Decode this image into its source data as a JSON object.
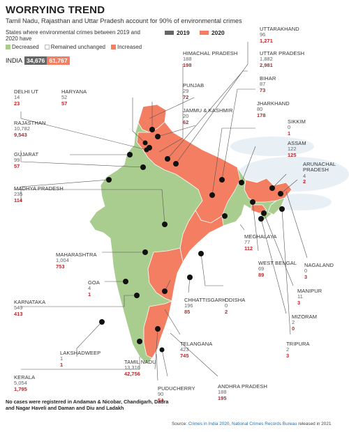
{
  "title": "WORRYING TREND",
  "subtitle": "Tamil Nadu, Rajasthan and Uttar Pradesh  account for 90% of environmental crimes",
  "legend": {
    "heading": "States where environmental crimes between 2019 and 2020 have",
    "year_2019": "2019",
    "year_2020": "2020",
    "decreased": "Decreased",
    "unchanged": "Remained unchanged",
    "increased": "Increased"
  },
  "colors": {
    "decreased": "#a9cc8f",
    "increased": "#f37e62",
    "y2019": "#666666",
    "y2020": "#f37e62",
    "value2020": "#c0272d"
  },
  "india": {
    "name": "INDIA",
    "v2019": "34,676",
    "v2020": "61,767"
  },
  "states": {
    "uttarakhand": {
      "name": "UTTARAKHAND",
      "v2019": "96",
      "v2020": "1,271"
    },
    "uttar_pradesh": {
      "name": "UTTAR PRADESH",
      "v2019": "1,882",
      "v2020": "2,981"
    },
    "himachal_pradesh": {
      "name": "HIMACHAL PRADESH",
      "v2019": "188",
      "v2020": "198"
    },
    "bihar": {
      "name": "BIHAR",
      "v2019": "87",
      "v2020": "73"
    },
    "punjab": {
      "name": "PUNJAB",
      "v2019": "29",
      "v2020": "72"
    },
    "jharkhand": {
      "name": "JHARKHAND",
      "v2019": "80",
      "v2020": "178"
    },
    "delhi": {
      "name": "DELHI UT",
      "v2019": "14",
      "v2020": "23"
    },
    "haryana": {
      "name": "HARYANA",
      "v2019": "52",
      "v2020": "57"
    },
    "jammu_kashmir": {
      "name": "JAMMU & KASHMIR",
      "v2019": "20",
      "v2020": "62"
    },
    "sikkim": {
      "name": "SIKKIM",
      "v2019": "0",
      "v2020": "1"
    },
    "rajasthan": {
      "name": "RAJASTHAN",
      "v2019": "10,782",
      "v2020": "9,543"
    },
    "assam": {
      "name": "ASSAM",
      "v2019": "122",
      "v2020": "125"
    },
    "gujarat": {
      "name": "GUJARAT",
      "v2019": "99",
      "v2020": "57"
    },
    "arunachal_pradesh": {
      "name": "ARUNACHAL PRADESH",
      "v2019": "4",
      "v2020": "2"
    },
    "madhya_pradesh": {
      "name": "MADHYA PRADESH",
      "v2019": "235",
      "v2020": "114"
    },
    "meghalaya": {
      "name": "MEGHALAYA",
      "v2019": "77",
      "v2020": "112"
    },
    "maharashtra": {
      "name": "MAHARASHTRA",
      "v2019": "1,004",
      "v2020": "753"
    },
    "west_bengal": {
      "name": "WEST BENGAL",
      "v2019": "69",
      "v2020": "89"
    },
    "nagaland": {
      "name": "NAGALAND",
      "v2019": "0",
      "v2020": "3"
    },
    "goa": {
      "name": "GOA",
      "v2019": "4",
      "v2020": "1"
    },
    "manipur": {
      "name": "MANIPUR",
      "v2019": "11",
      "v2020": "3"
    },
    "chhattisgarh": {
      "name": "CHHATTISGARH",
      "v2019": "196",
      "v2020": "85"
    },
    "odisha": {
      "name": "ODISHA",
      "v2019": "0",
      "v2020": "2"
    },
    "karnataka": {
      "name": "KARNATAKA",
      "v2019": "549",
      "v2020": "413"
    },
    "mizoram": {
      "name": "MIZORAM",
      "v2019": "2",
      "v2020": "0"
    },
    "telangana": {
      "name": "TELANGANA",
      "v2019": "423",
      "v2020": "745"
    },
    "lakshadweep": {
      "name": "LAKSHADWEEP",
      "v2019": "1",
      "v2020": "1"
    },
    "tripura": {
      "name": "TRIPURA",
      "v2019": "2",
      "v2020": "3"
    },
    "tamil_nadu": {
      "name": "TAMIL NADU",
      "v2019": "13,316",
      "v2020": "42,756"
    },
    "kerala": {
      "name": "KERALA",
      "v2019": "5,054",
      "v2020": "1,795"
    },
    "andhra_pradesh": {
      "name": "ANDHRA PRADESH",
      "v2019": "188",
      "v2020": "195"
    },
    "puducherry": {
      "name": "PUDUCHERRY",
      "v2019": "90",
      "v2020": "54"
    }
  },
  "note": "No cases were registered in Andaman & Nicobar, Chandigarh, Dadra and Nagar Haveli and Daman and Diu and Ladakh",
  "source": {
    "prefix": "Source: ",
    "link1": "Crimes in India 2020",
    "sep": ", ",
    "link2": "National Crimes Records Bureau",
    "suffix": " released in 2021"
  }
}
